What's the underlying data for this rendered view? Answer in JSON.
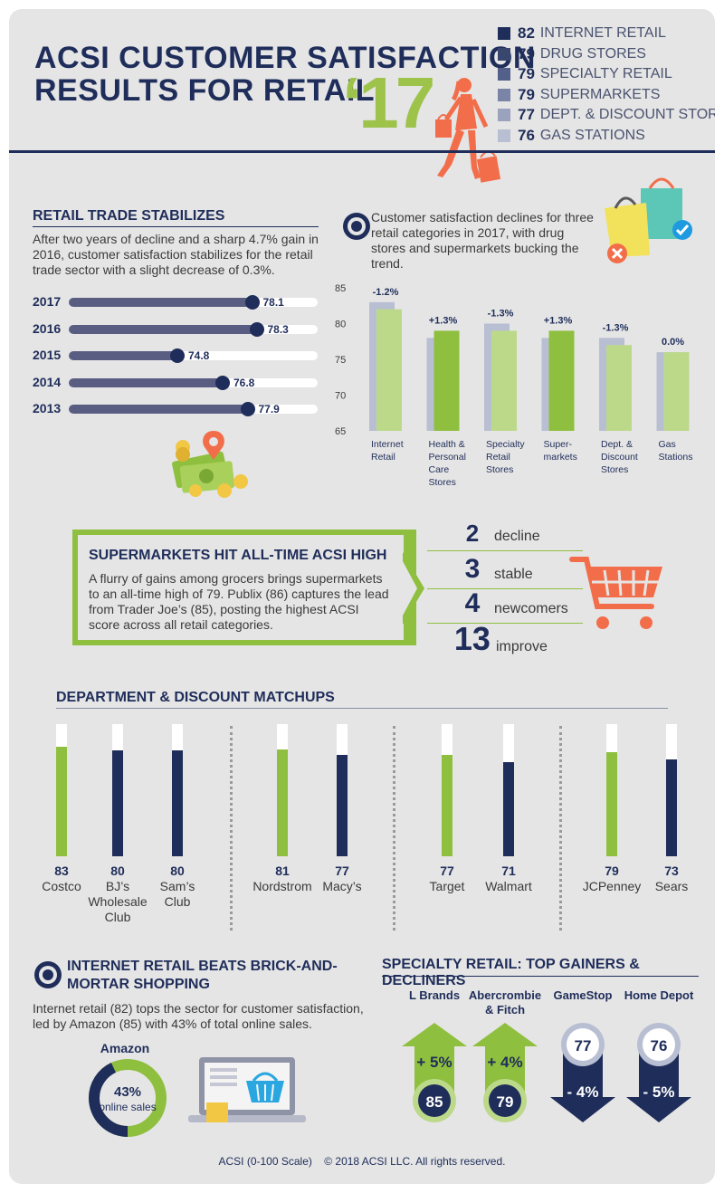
{
  "header": {
    "title_line1": "ACSI CUSTOMER SATISFACTION",
    "title_line2": "RESULTS FOR RETAIL",
    "year": "‘17",
    "legend": [
      {
        "score": "82",
        "label": "INTERNET RETAIL",
        "color": "#1f2d5a"
      },
      {
        "score": "79",
        "label": "DRUG STORES",
        "color": "#39476e"
      },
      {
        "score": "79",
        "label": "SPECIALTY RETAIL",
        "color": "#53608a"
      },
      {
        "score": "79",
        "label": "SUPERMARKETS",
        "color": "#7a84a6"
      },
      {
        "score": "77",
        "label": "DEPT. & DISCOUNT STORES",
        "color": "#9aa2bd"
      },
      {
        "score": "76",
        "label": "GAS STATIONS",
        "color": "#b9bfd2"
      }
    ]
  },
  "trade": {
    "title": "RETAIL TRADE STABILIZES",
    "text": "After two years of decline and a sharp 4.7% gain in 2016, customer satisfaction stabilizes for the retail trade sector with a slight decrease of 0.3%.",
    "rows": [
      {
        "year": "2017",
        "value": 78.1,
        "label": "78.1"
      },
      {
        "year": "2016",
        "value": 78.3,
        "label": "78.3"
      },
      {
        "year": "2015",
        "value": 74.8,
        "label": "74.8"
      },
      {
        "year": "2014",
        "value": 76.8,
        "label": "76.8"
      },
      {
        "year": "2013",
        "value": 77.9,
        "label": "77.9"
      }
    ]
  },
  "categories_note": "Customer satisfaction declines for three retail categories in 2017, with drug stores and supermarkets bucking the trend.",
  "chart_data": {
    "type": "bar",
    "ylim": [
      65,
      85
    ],
    "yticks": [
      65,
      70,
      75,
      80,
      85
    ],
    "categories": [
      "Internet Retail",
      "Health & Personal Care Stores",
      "Specialty Retail Stores",
      "Super-markets",
      "Dept. & Discount Stores",
      "Gas Stations"
    ],
    "category_lines": [
      [
        "Internet",
        "Retail"
      ],
      [
        "Health &",
        "Personal",
        "Care",
        "Stores"
      ],
      [
        "Specialty",
        "Retail",
        "Stores"
      ],
      [
        "Super-",
        "markets"
      ],
      [
        "Dept. &",
        "Discount",
        "Stores"
      ],
      [
        "Gas",
        "Stations"
      ]
    ],
    "series": [
      {
        "values": [
          83,
          78,
          80,
          78,
          78,
          76
        ],
        "color": "#b9bfd2"
      },
      {
        "values": [
          82,
          79,
          79,
          79,
          77,
          76
        ],
        "colors": [
          "#bcd98a",
          "#8fbf3e",
          "#bcd98a",
          "#8fbf3e",
          "#bcd98a",
          "#bcd98a"
        ]
      }
    ],
    "change_labels": [
      "-1.2%",
      "+1.3%",
      "-1.3%",
      "+1.3%",
      "-1.3%",
      "0.0%"
    ],
    "grid": false
  },
  "supermarkets": {
    "title": "SUPERMARKETS HIT ALL-TIME ACSI HIGH",
    "text": "A flurry of gains among grocers brings supermarkets to an all-time high of 79. Publix (86) captures the lead from Trader Joe’s (85), posting the highest ACSI score across all retail categories.",
    "stats": [
      {
        "num": "2",
        "label": "decline"
      },
      {
        "num": "3",
        "label": "stable"
      },
      {
        "num": "4",
        "label": "newcomers"
      },
      {
        "num": "13",
        "label": "improve"
      }
    ]
  },
  "matchups": {
    "title": "DEPARTMENT & DISCOUNT MATCHUPS",
    "max": 100,
    "groups": [
      [
        {
          "name": "Costco",
          "value": 83,
          "label": "83",
          "color": "#8fbf3e"
        },
        {
          "name": "BJ’s Wholesale Club",
          "lines": [
            "BJ’s",
            "Wholesale",
            "Club"
          ],
          "value": 80,
          "label": "80",
          "color": "#1f2d5a"
        },
        {
          "name": "Sam’s Club",
          "lines": [
            "Sam’s",
            "Club"
          ],
          "value": 80,
          "label": "80",
          "color": "#1f2d5a"
        }
      ],
      [
        {
          "name": "Nordstrom",
          "value": 81,
          "label": "81",
          "color": "#8fbf3e"
        },
        {
          "name": "Macy’s",
          "value": 77,
          "label": "77",
          "color": "#1f2d5a"
        }
      ],
      [
        {
          "name": "Target",
          "value": 77,
          "label": "77",
          "color": "#8fbf3e"
        },
        {
          "name": "Walmart",
          "value": 71,
          "label": "71",
          "color": "#1f2d5a"
        }
      ],
      [
        {
          "name": "JCPenney",
          "value": 79,
          "label": "79",
          "color": "#8fbf3e"
        },
        {
          "name": "Sears",
          "value": 73,
          "label": "73",
          "color": "#1f2d5a"
        }
      ]
    ]
  },
  "internet": {
    "title_line1": "INTERNET RETAIL BEATS BRICK-AND-",
    "title_line2": "MORTAR SHOPPING",
    "text": "Internet retail (82) tops the sector for customer satisfaction, led by Amazon (85) with 43% of total online sales.",
    "donut_label": "Amazon",
    "donut_pct": "43%",
    "donut_sub": "online sales",
    "share": 0.43
  },
  "specialty": {
    "title": "SPECIALTY RETAIL: TOP GAINERS & DECLINERS",
    "items": [
      {
        "name": "L Brands",
        "change": "+ 5%",
        "score": "85",
        "dir": "up"
      },
      {
        "name": "Abercrombie & Fitch",
        "lines": [
          "Abercrombie",
          "& Fitch"
        ],
        "change": "+ 4%",
        "score": "79",
        "dir": "up"
      },
      {
        "name": "GameStop",
        "change": "- 4%",
        "score": "77",
        "dir": "down"
      },
      {
        "name": "Home Depot",
        "change": "- 5%",
        "score": "76",
        "dir": "down"
      }
    ]
  },
  "footer": {
    "scale": "ACSI (0-100 Scale)",
    "copyright": "© 2018 ACSI LLC. All rights reserved."
  }
}
